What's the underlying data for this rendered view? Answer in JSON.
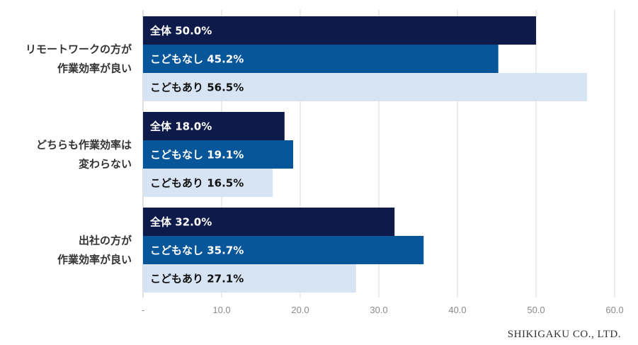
{
  "colors": {
    "series": [
      "#0d1a4a",
      "#07569a",
      "#d6e4f3"
    ],
    "label_text": [
      "#ffffff",
      "#ffffff",
      "#111111"
    ],
    "grid": "#d9d9d9",
    "axis": "#bfbfbf"
  },
  "chart_data": {
    "type": "bar",
    "orientation": "horizontal",
    "categories": [
      [
        "リモートワークの方が",
        "作業効率が良い"
      ],
      [
        "どちらも作業効率は",
        "変わらない"
      ],
      [
        "出社の方が",
        "作業効率が良い"
      ]
    ],
    "series": [
      {
        "name": "全体",
        "values": [
          50.0,
          18.0,
          32.0
        ]
      },
      {
        "name": "こどもなし",
        "values": [
          45.2,
          19.1,
          35.7
        ]
      },
      {
        "name": "こどもあり",
        "values": [
          56.5,
          16.5,
          27.1
        ]
      }
    ],
    "xlim": [
      0,
      60
    ],
    "xticks": [
      0,
      10,
      20,
      30,
      40,
      50,
      60
    ],
    "xtick_labels": [
      "-",
      "10.0",
      "20.0",
      "30.0",
      "40.0",
      "50.0",
      "60.0"
    ],
    "grid": true,
    "legend": "none"
  },
  "footer": {
    "credit": "SHIKIGAKU CO., LTD."
  }
}
